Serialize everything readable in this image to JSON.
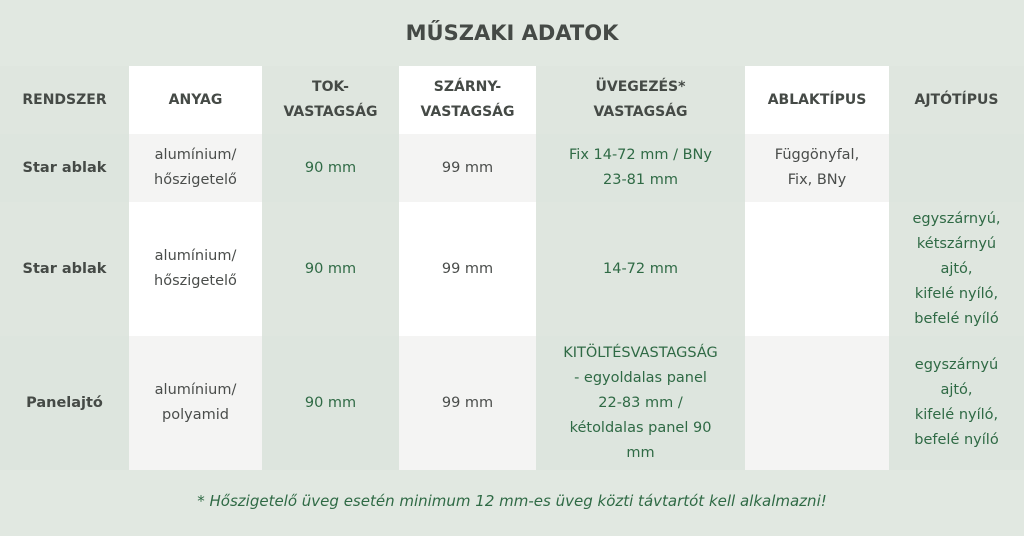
{
  "title": "MŰSZAKI ADATOK",
  "headers": [
    "RENDSZER",
    "ANYAG",
    "TOK-\nVASTAGSÁG",
    "SZÁRNY-\nVASTAGSÁG",
    "ÜVEGEZÉS*\nVASTAGSÁG",
    "ABLAKTÍPUS",
    "AJTÓTÍPUS"
  ],
  "rows": [
    [
      "Star ablak",
      "alumínium/\nhőszigetelő",
      "90 mm",
      "99 mm",
      "Fix 14-72 mm / BNy\n23-81 mm",
      "Függönyfal,\nFix, BNy",
      ""
    ],
    [
      "Star ablak",
      "alumínium/\nhőszigetelő",
      "90 mm",
      "99 mm",
      "14-72 mm",
      "",
      "egyszárnyú,\nkétszárnyú\najtó,\nkifelé nyíló,\nbefelé nyíló"
    ],
    [
      "Panelajtó",
      "alumínium/\npolyamid",
      "90 mm",
      "99 mm",
      "KITÖLTÉSVASTAGSÁG\n- egyoldalas panel\n22-83 mm /\nkétoldalas panel 90\nmm",
      "",
      "egyszárnyú\najtó,\nkifelé nyíló,\nbefelé nyíló"
    ]
  ],
  "footnote": "* Hőszigetelő üveg esetén minimum 12 mm-es üveg közti távtartót kell alkalmazni!",
  "colors": {
    "accent_green": "#2f6a45",
    "column_tint": "#dfe6df",
    "heading_text": "#454a46"
  }
}
